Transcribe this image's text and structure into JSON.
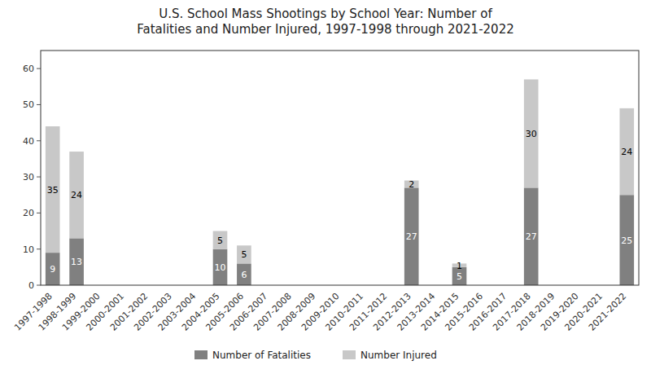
{
  "chart_data": {
    "type": "bar",
    "title": "U.S. School Mass Shootings by School Year: Number of\nFatalities and Number Injured, 1997-1998 through 2021-2022",
    "categories": [
      "1997-1998",
      "1998-1999",
      "1999-2000",
      "2000-2001",
      "2001-2002",
      "2002-2003",
      "2003-2004",
      "2004-2005",
      "2005-2006",
      "2006-2007",
      "2007-2008",
      "2008-2009",
      "2009-2010",
      "2010-2011",
      "2011-2012",
      "2012-2013",
      "2013-2014",
      "2014-2015",
      "2015-2016",
      "2016-2017",
      "2017-2018",
      "2018-2019",
      "2019-2020",
      "2020-2021",
      "2021-2022"
    ],
    "series": [
      {
        "name": "Number of Fatalities",
        "color": "#808080",
        "values": [
          9,
          13,
          0,
          0,
          0,
          0,
          0,
          10,
          6,
          0,
          0,
          0,
          0,
          0,
          0,
          27,
          0,
          5,
          0,
          0,
          27,
          0,
          0,
          0,
          25
        ]
      },
      {
        "name": "Number Injured",
        "color": "#c8c8c8",
        "values": [
          35,
          24,
          0,
          0,
          0,
          0,
          0,
          5,
          5,
          0,
          0,
          0,
          0,
          0,
          0,
          2,
          0,
          1,
          0,
          0,
          30,
          0,
          0,
          0,
          24
        ]
      }
    ],
    "stacked": true,
    "data_labels": true,
    "ylim": [
      0,
      65
    ],
    "yticks": [
      0,
      10,
      20,
      30,
      40,
      50,
      60
    ],
    "grid": false,
    "legend": "bottom"
  }
}
